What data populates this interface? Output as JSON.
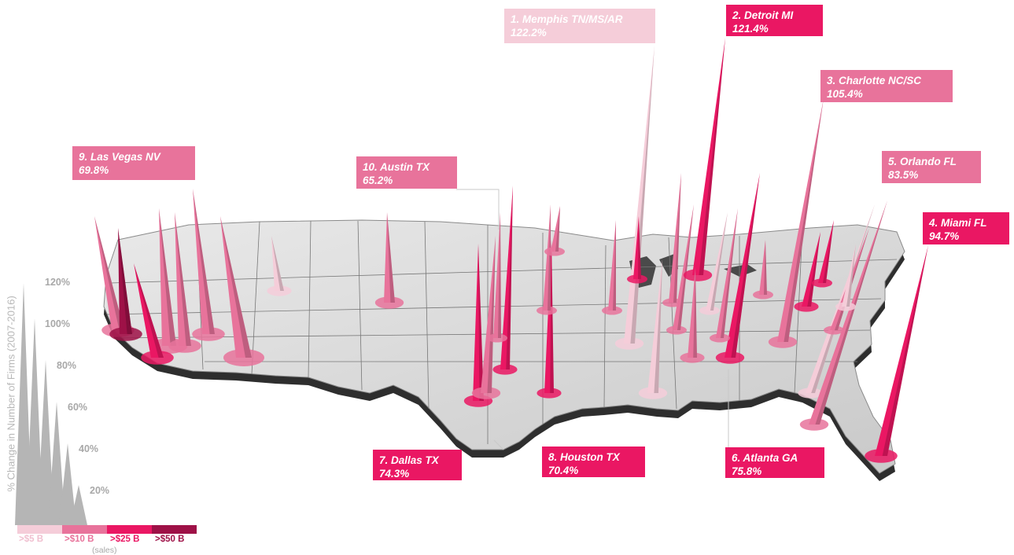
{
  "colors": {
    "tier_light": "#f5cdd9",
    "tier_medium": "#e8739b",
    "tier_hot": "#ea1763",
    "tier_dark": "#9e1147",
    "axis_grey": "#a8a8a8"
  },
  "axis": {
    "label": "% Change in Number of Firms (2007-2016)",
    "ticks": [
      "120%",
      "100%",
      "80%",
      "60%",
      "40%",
      "20%"
    ]
  },
  "legend": {
    "items": [
      {
        "label": ">$5 B",
        "color": "#f5cdd9",
        "text_color": "#f0c0d0"
      },
      {
        "label": ">$10 B",
        "color": "#e8739b",
        "text_color": "#e8739b"
      },
      {
        "label": ">$25 B",
        "color": "#ea1763",
        "text_color": "#ea1763"
      },
      {
        "label": ">$50 B",
        "color": "#9e1147",
        "text_color": "#9e1147"
      }
    ],
    "units": "(sales)"
  },
  "callouts": [
    {
      "rank": "1.",
      "city": "Memphis TN/MS/AR",
      "pct": "122.2%",
      "tier": "light"
    },
    {
      "rank": "2.",
      "city": "Detroit MI",
      "pct": "121.4%",
      "tier": "hot"
    },
    {
      "rank": "3.",
      "city": "Charlotte NC/SC",
      "pct": "105.4%",
      "tier": "med"
    },
    {
      "rank": "4.",
      "city": "Miami FL",
      "pct": "94.7%",
      "tier": "hot"
    },
    {
      "rank": "5.",
      "city": "Orlando FL",
      "pct": "83.5%",
      "tier": "med"
    },
    {
      "rank": "6.",
      "city": "Atlanta GA",
      "pct": "75.8%",
      "tier": "hot"
    },
    {
      "rank": "7.",
      "city": "Dallas TX",
      "pct": "74.3%",
      "tier": "hot"
    },
    {
      "rank": "8.",
      "city": "Houston TX",
      "pct": "70.4%",
      "tier": "hot"
    },
    {
      "rank": "9.",
      "city": "Las Vegas NV",
      "pct": "69.8%",
      "tier": "med"
    },
    {
      "rank": "10.",
      "city": "Austin TX",
      "pct": "65.2%",
      "tier": "med"
    }
  ]
}
